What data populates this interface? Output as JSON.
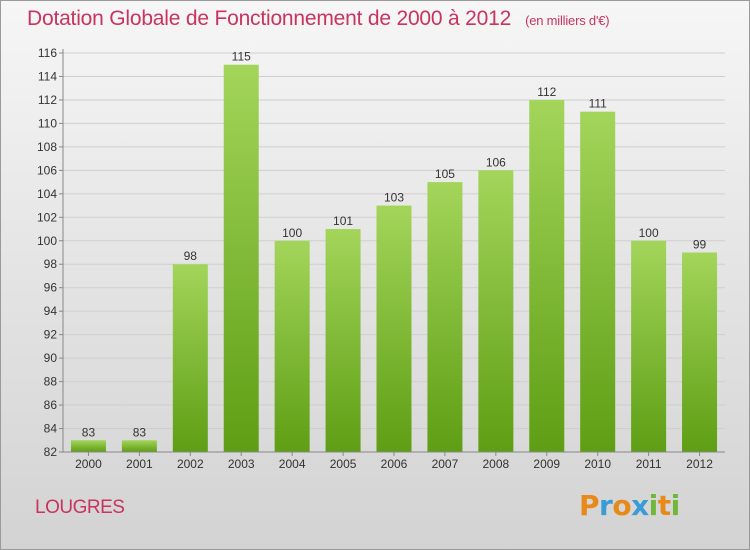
{
  "header": {
    "title": "Dotation Globale de Fonctionnement de 2000 à 2012",
    "unit": "(en milliers d'€)"
  },
  "commune": "LOUGRES",
  "brand": {
    "name": "Proxiti",
    "letters": [
      "P",
      "r",
      "o",
      "x",
      "i",
      "t",
      "i"
    ],
    "colors": [
      "#e88a1a",
      "#3a9bd5",
      "#e88a1a",
      "#3a9bd5",
      "#6fb83a",
      "#e88a1a",
      "#6fb83a"
    ]
  },
  "colors": {
    "bar_top": "#a3d55a",
    "bar_bottom": "#5e9e14",
    "title": "#c8345f"
  },
  "chart_data": {
    "type": "bar",
    "categories": [
      "2000",
      "2001",
      "2002",
      "2003",
      "2004",
      "2005",
      "2006",
      "2007",
      "2008",
      "2009",
      "2010",
      "2011",
      "2012"
    ],
    "values": [
      83,
      83,
      98,
      115,
      100,
      101,
      103,
      105,
      106,
      112,
      111,
      100,
      99
    ],
    "ylim": [
      82,
      116
    ],
    "yticks": [
      82,
      84,
      86,
      88,
      90,
      92,
      94,
      96,
      98,
      100,
      102,
      104,
      106,
      108,
      110,
      112,
      114,
      116
    ],
    "grid": true
  }
}
